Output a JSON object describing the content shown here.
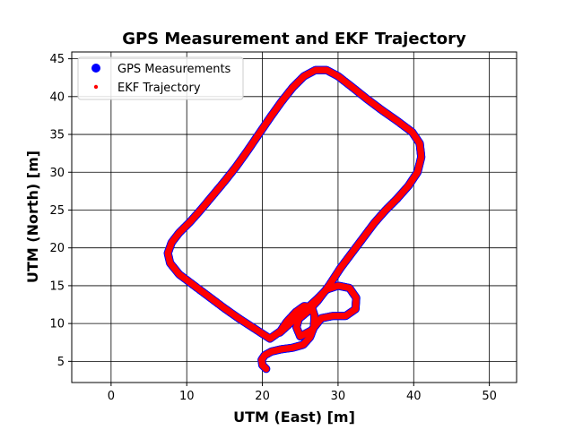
{
  "chart_data": {
    "type": "scatter",
    "title": "GPS Measurement and EKF Trajectory",
    "xlabel": "UTM (East) [m]",
    "ylabel": "UTM (North) [m]",
    "xlim": [
      -5.2,
      53.6
    ],
    "ylim": [
      2.2,
      45.9
    ],
    "xticks": [
      0,
      10,
      20,
      30,
      40,
      50
    ],
    "yticks": [
      5,
      10,
      15,
      20,
      25,
      30,
      35,
      40,
      45
    ],
    "grid": true,
    "legend_position": "top-left",
    "series": [
      {
        "name": "GPS Measurements",
        "color": "#0000ff",
        "marker": "large-dot",
        "points": [
          [
            20.5,
            4.0
          ],
          [
            20.0,
            4.5
          ],
          [
            19.9,
            5.2
          ],
          [
            20.3,
            5.8
          ],
          [
            21.2,
            6.3
          ],
          [
            22.5,
            6.6
          ],
          [
            24.0,
            6.8
          ],
          [
            25.4,
            7.2
          ],
          [
            26.3,
            8.2
          ],
          [
            26.8,
            9.5
          ],
          [
            26.9,
            11.0
          ],
          [
            26.5,
            12.2
          ],
          [
            25.5,
            12.3
          ],
          [
            24.4,
            11.5
          ],
          [
            23.2,
            10.2
          ],
          [
            22.4,
            9.0
          ],
          [
            21.0,
            8.0
          ],
          [
            19.0,
            9.3
          ],
          [
            17.0,
            10.6
          ],
          [
            15.0,
            12.0
          ],
          [
            13.0,
            13.5
          ],
          [
            11.0,
            15.0
          ],
          [
            9.0,
            16.5
          ],
          [
            7.8,
            18.0
          ],
          [
            7.5,
            19.3
          ],
          [
            8.0,
            20.7
          ],
          [
            9.0,
            22.0
          ],
          [
            10.5,
            23.5
          ],
          [
            12.0,
            25.2
          ],
          [
            13.5,
            27.0
          ],
          [
            15.0,
            28.8
          ],
          [
            16.5,
            30.7
          ],
          [
            18.0,
            32.8
          ],
          [
            19.5,
            35.0
          ],
          [
            21.0,
            37.2
          ],
          [
            22.5,
            39.3
          ],
          [
            24.0,
            41.2
          ],
          [
            25.5,
            42.7
          ],
          [
            27.0,
            43.5
          ],
          [
            28.5,
            43.5
          ],
          [
            30.0,
            42.7
          ],
          [
            31.8,
            41.3
          ],
          [
            33.8,
            39.7
          ],
          [
            35.8,
            38.2
          ],
          [
            37.8,
            36.8
          ],
          [
            39.8,
            35.3
          ],
          [
            40.8,
            33.8
          ],
          [
            41.0,
            32.0
          ],
          [
            40.5,
            30.0
          ],
          [
            39.3,
            28.2
          ],
          [
            37.8,
            26.5
          ],
          [
            36.3,
            25.0
          ],
          [
            34.8,
            23.3
          ],
          [
            33.3,
            21.3
          ],
          [
            31.8,
            19.3
          ],
          [
            30.3,
            17.3
          ],
          [
            28.8,
            15.0
          ],
          [
            27.3,
            13.0
          ],
          [
            26.0,
            11.6
          ],
          [
            24.8,
            10.6
          ],
          [
            24.5,
            9.5
          ],
          [
            25.0,
            8.3
          ],
          [
            26.5,
            9.1
          ],
          [
            27.8,
            10.7
          ],
          [
            29.3,
            11.0
          ],
          [
            31.0,
            11.0
          ],
          [
            32.3,
            11.9
          ],
          [
            32.4,
            13.4
          ],
          [
            31.5,
            14.7
          ],
          [
            30.0,
            15.0
          ],
          [
            28.5,
            14.5
          ],
          [
            27.3,
            13.3
          ],
          [
            26.0,
            12.1
          ],
          [
            24.7,
            11.0
          ],
          [
            23.4,
            9.8
          ],
          [
            22.3,
            8.8
          ]
        ]
      },
      {
        "name": "EKF Trajectory",
        "color": "#ff0000",
        "marker": "small-dot",
        "points": [
          [
            20.5,
            4.0
          ],
          [
            20.0,
            4.5
          ],
          [
            19.9,
            5.2
          ],
          [
            20.3,
            5.8
          ],
          [
            21.2,
            6.3
          ],
          [
            22.5,
            6.6
          ],
          [
            24.0,
            6.8
          ],
          [
            25.4,
            7.2
          ],
          [
            26.3,
            8.2
          ],
          [
            26.8,
            9.5
          ],
          [
            26.9,
            11.0
          ],
          [
            26.5,
            12.2
          ],
          [
            25.5,
            12.3
          ],
          [
            24.4,
            11.5
          ],
          [
            23.2,
            10.2
          ],
          [
            22.4,
            9.0
          ],
          [
            21.0,
            8.0
          ],
          [
            19.0,
            9.3
          ],
          [
            17.0,
            10.6
          ],
          [
            15.0,
            12.0
          ],
          [
            13.0,
            13.5
          ],
          [
            11.0,
            15.0
          ],
          [
            9.0,
            16.5
          ],
          [
            7.8,
            18.0
          ],
          [
            7.5,
            19.3
          ],
          [
            8.0,
            20.7
          ],
          [
            9.0,
            22.0
          ],
          [
            10.5,
            23.5
          ],
          [
            12.0,
            25.2
          ],
          [
            13.5,
            27.0
          ],
          [
            15.0,
            28.8
          ],
          [
            16.5,
            30.7
          ],
          [
            18.0,
            32.8
          ],
          [
            19.5,
            35.0
          ],
          [
            21.0,
            37.2
          ],
          [
            22.5,
            39.3
          ],
          [
            24.0,
            41.2
          ],
          [
            25.5,
            42.7
          ],
          [
            27.0,
            43.5
          ],
          [
            28.5,
            43.5
          ],
          [
            30.0,
            42.7
          ],
          [
            31.8,
            41.3
          ],
          [
            33.8,
            39.7
          ],
          [
            35.8,
            38.2
          ],
          [
            37.8,
            36.8
          ],
          [
            39.8,
            35.3
          ],
          [
            40.8,
            33.8
          ],
          [
            41.0,
            32.0
          ],
          [
            40.5,
            30.0
          ],
          [
            39.3,
            28.2
          ],
          [
            37.8,
            26.5
          ],
          [
            36.3,
            25.0
          ],
          [
            34.8,
            23.3
          ],
          [
            33.3,
            21.3
          ],
          [
            31.8,
            19.3
          ],
          [
            30.3,
            17.3
          ],
          [
            28.8,
            15.0
          ],
          [
            27.3,
            13.0
          ],
          [
            26.0,
            11.6
          ],
          [
            24.8,
            10.6
          ],
          [
            24.5,
            9.5
          ],
          [
            25.0,
            8.3
          ],
          [
            26.5,
            9.1
          ],
          [
            27.8,
            10.7
          ],
          [
            29.3,
            11.0
          ],
          [
            31.0,
            11.0
          ],
          [
            32.3,
            11.9
          ],
          [
            32.4,
            13.4
          ],
          [
            31.5,
            14.7
          ],
          [
            30.0,
            15.0
          ],
          [
            28.5,
            14.5
          ],
          [
            27.3,
            13.3
          ],
          [
            26.0,
            12.1
          ],
          [
            24.7,
            11.0
          ],
          [
            23.4,
            9.8
          ],
          [
            22.3,
            8.8
          ]
        ]
      }
    ]
  }
}
